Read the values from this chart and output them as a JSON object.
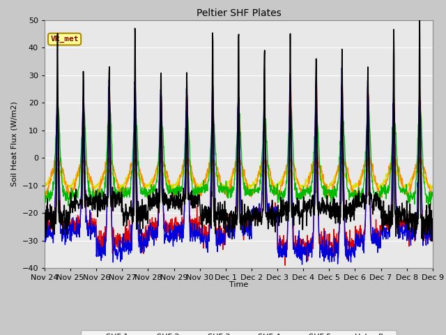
{
  "title": "Peltier SHF Plates",
  "ylabel": "Soil Heat Flux (W/m2)",
  "xlabel": "Time",
  "ylim": [
    -40,
    50
  ],
  "annotation": "VR_met",
  "series_colors": {
    "pSHF 1": "#dd0000",
    "pSHF 2": "#0000dd",
    "pSHF 3": "#00bb00",
    "pSHF 4": "#ff8800",
    "pSHF 5": "#dddd00",
    "Hukseflux": "#000000"
  },
  "tick_labels": [
    "Nov 24",
    "Nov 25",
    "Nov 26",
    "Nov 27",
    "Nov 28",
    "Nov 29",
    "Nov 30",
    "Dec 1",
    "Dec 2",
    "Dec 3",
    "Dec 4",
    "Dec 5",
    "Dec 6",
    "Dec 7",
    "Dec 8",
    "Dec 9"
  ],
  "fig_facecolor": "#c8c8c8",
  "axes_facecolor": "#e8e8e8",
  "grid_color": "#ffffff",
  "annotation_bg": "#ffff99",
  "annotation_border": "#aa8800",
  "annotation_text_color": "#880000",
  "n_days": 15,
  "pts_per_day": 96
}
